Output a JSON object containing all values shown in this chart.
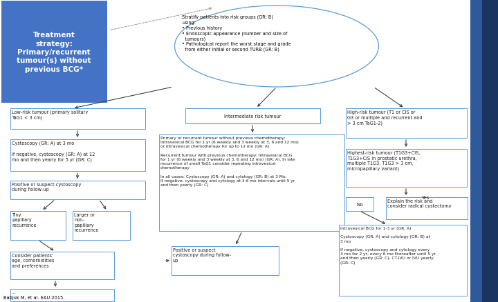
{
  "bg_color": "#f0f4f8",
  "white": "#ffffff",
  "title_box_color": "#4472c4",
  "title_text_color": "#ffffff",
  "title_text": "Treatment\nstrategy:\nPrimary/recurrent\ntumour(s) without\nprevious BCG*",
  "sidebar_dark": "#1a3560",
  "sidebar_mid": "#2e5a9c",
  "box_ec": "#5b9bd5",
  "arrow_c": "#404040",
  "dashed_c": "#888888",
  "ellipse_text": "Stratify patients into risk groups (GR: B)\nusing:\n• Previous history\n• Endoscopic appearance (number and size of\n  tumours)\n• Pathological report the worst stage and grade\n  from either initial or second TURB (GR: B)",
  "low_risk_text": "Low-risk tumour (primary solitary\nTaG1 < 3 cm)",
  "intermediate_text": "Intermediate risk tumour",
  "high_risk_text": "High-risk tumour (T1 or CIS or\nG3 or multiple and recurrent and\n> 3 cm TaG1-2)",
  "cystoscopy_text": "Cystoscopy (GR: A) at 3 mo\n\nIf negative, cystoscopy (GR: A) at 12\nmo and then yearly for 5 yr (GR: C)",
  "pos_suspect1_text": "Positive or suspect cystoscopy\nduring follow-up",
  "tiny_text": "Tiny\npapillary\nrecurrence",
  "larger_text": "Larger or\nnon-\npapillary\nrecurrence",
  "consider_text": "Consider patients'\nage, comorbidities\nand preferences",
  "treatment_text": "Primary or recurrent tumour without previous chemotherapy:\nIntravesical BCG for 1 yr (6 weekly and 3 weekly at 3, 6 and 12 mo)\nor intravesical chemotherapy for up to 12 mo (GR: A)\n\nRecurrent tumour with previous chemotherapy: Intravesical BCG\nfor 1 yr (6 weekly and 3 weekly at 3, 6 and 12 mo) (GR: A). In late\nrecurrence of small TaG1 consider repeating intravesical\nchemotherapy\n\nIn all cases: Cystoscopy (GR: A) and cytology (GR: B) at 3 Mo.\nIf negative, cystoscopy and cytology at 3-6 mo intervals until 5 yr\nand then yearly (GR: C)",
  "pos_suspect2_text": "Positive or suspect\ncystoscopy during follow-\nup",
  "highest_risk_text": "Highest-risk tumour (T1G3+CIS,\nT1G3+CIS in prostatic urethra,\nmultiple T1G3, T1G3 > 3 cm,\nmicropapillary variant)",
  "no_text": "No",
  "yes_text": "Yes",
  "explain_text": "Explain the risk and\nconsider radical cystectomy",
  "intravesical_text": "Intravesical BCG for 1-3 yr (GR: A)\n\nCystoscopy (GR: A) and cytology (GR: B) at\n3 mo\n\nIf negative, cystoscopy and cytology every\n3 mo for 2 yr, every 6 mo thereafter until 5 yr\nand then yearly (GR: C), CT-IVU or IVU yearly\n(GR: C)",
  "source": "Babjuk M, et al. EAU 2015."
}
